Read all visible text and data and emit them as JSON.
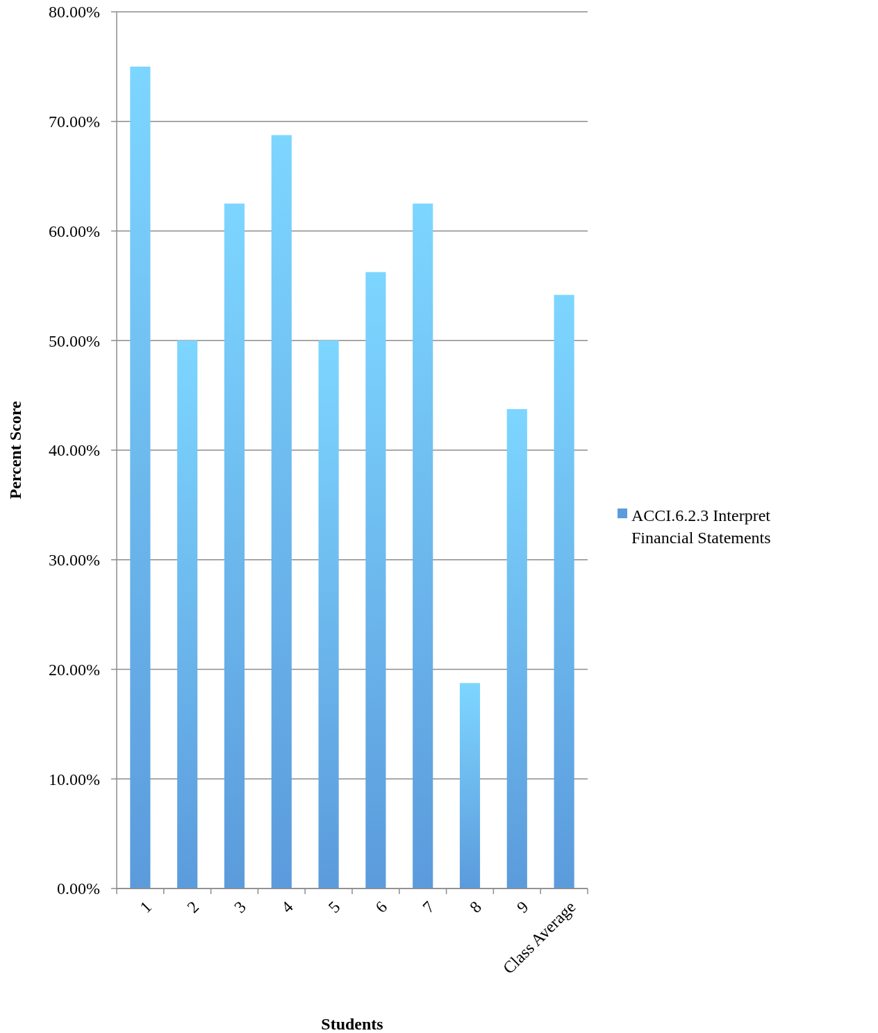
{
  "chart_data": {
    "type": "bar",
    "xlabel": "Students",
    "ylabel": "Percent Score",
    "categories": [
      "1",
      "2",
      "3",
      "4",
      "5",
      "6",
      "7",
      "8",
      "9",
      "Class Average"
    ],
    "series": [
      {
        "name": "ACCI.6.2.3 Interpret Financial Statements",
        "color": "#5b9bdc",
        "values": [
          75,
          50,
          62.5,
          68.75,
          50,
          56.25,
          62.5,
          18.75,
          43.75,
          54.17
        ]
      }
    ],
    "ylim": [
      0,
      80
    ],
    "yticks": [
      {
        "value": 0,
        "label": "0.00%"
      },
      {
        "value": 10,
        "label": "10.00%"
      },
      {
        "value": 20,
        "label": "20.00%"
      },
      {
        "value": 30,
        "label": "30.00%"
      },
      {
        "value": 40,
        "label": "40.00%"
      },
      {
        "value": 50,
        "label": "50.00%"
      },
      {
        "value": 60,
        "label": "60.00%"
      },
      {
        "value": 70,
        "label": "70.00%"
      },
      {
        "value": 80,
        "label": "80.00%"
      }
    ],
    "grid": "y",
    "legend": "right"
  }
}
